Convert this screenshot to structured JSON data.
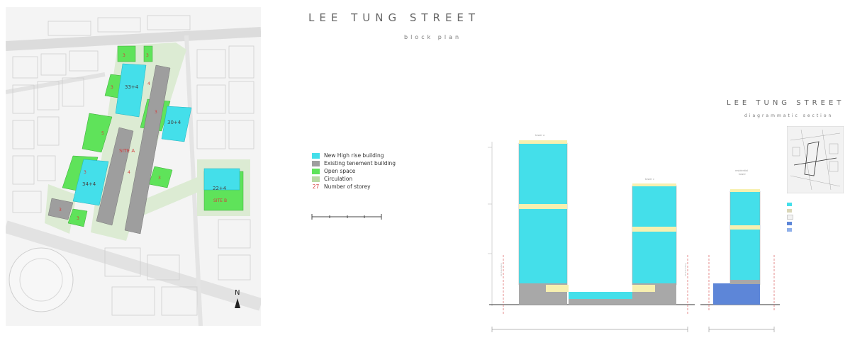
{
  "header": {
    "title": "LEE TUNG STREET",
    "subtitle": "block plan"
  },
  "section_header": {
    "title": "LEE TUNG STREET",
    "subtitle": "diagrammatic section"
  },
  "legend": {
    "items": [
      {
        "label": "New High rise building",
        "color": "#44dfea"
      },
      {
        "label": "Existing tenement building",
        "color": "#9e9e9e"
      },
      {
        "label": "Open space",
        "color": "#5fe35a"
      },
      {
        "label": "Circulation",
        "color": "#b9d9a4"
      }
    ],
    "storey_symbol": "27",
    "storey_label": "Number of storey"
  },
  "colors": {
    "highrise": "#44dfea",
    "tenement": "#9e9e9e",
    "open_space": "#5fe35a",
    "circulation": "#dcebd3",
    "storey_number": "#d43b3b",
    "transfer_floor": "#f7f0b0",
    "carpark": "#5d86d8"
  },
  "plan": {
    "labels": {
      "tower_a": "33+4",
      "tower_b": "30+4",
      "tower_c": "34+4",
      "tower_d": "22+4",
      "site_a": "SITE A",
      "site_b": "SITE B",
      "north": "N"
    }
  }
}
